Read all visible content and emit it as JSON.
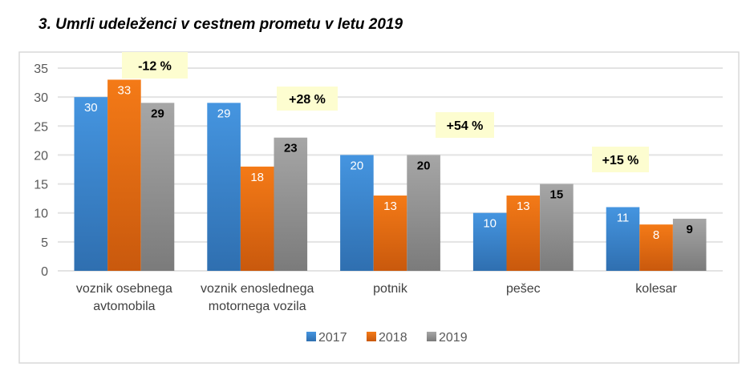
{
  "chart_data": {
    "type": "bar",
    "title": "3. Umrli udeleženci v cestnem prometu v letu 2019",
    "categories": [
      "voznik osebnega\navtomobila",
      "voznik enoslednega\nmotornega vozila",
      "potnik",
      "pešec",
      "kolesar"
    ],
    "series": [
      {
        "name": "2017",
        "values": [
          30,
          29,
          20,
          10,
          11
        ],
        "color": "#3f87d1"
      },
      {
        "name": "2018",
        "values": [
          33,
          18,
          13,
          13,
          8
        ],
        "color": "#ec6f14"
      },
      {
        "name": "2019",
        "values": [
          29,
          23,
          20,
          15,
          9
        ],
        "color": "#999999"
      }
    ],
    "annotations": [
      "-12 %",
      "+28 %",
      "+54 %",
      "+15 %"
    ],
    "ylim": [
      0,
      35
    ],
    "yticks": [
      0,
      5,
      10,
      15,
      20,
      25,
      30,
      35
    ],
    "grid": true,
    "legend": "bottom",
    "xlabel": "",
    "ylabel": ""
  }
}
